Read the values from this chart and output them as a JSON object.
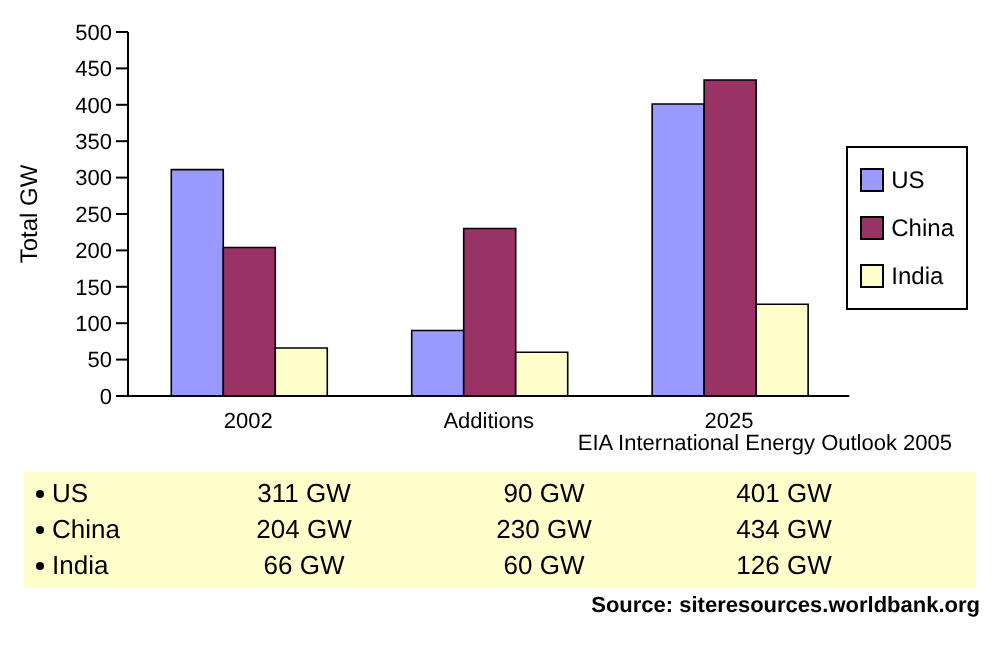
{
  "chart_data": {
    "type": "bar",
    "ylabel": "Total GW",
    "categories": [
      "2002",
      "Additions",
      "2025"
    ],
    "series": [
      {
        "name": "US",
        "color": "#9999ff",
        "values": [
          311,
          90,
          401
        ],
        "value_labels": [
          "311 GW",
          "90 GW",
          "401 GW"
        ]
      },
      {
        "name": "China",
        "color": "#993366",
        "values": [
          204,
          230,
          434
        ],
        "value_labels": [
          "204 GW",
          "230 GW",
          "434 GW"
        ]
      },
      {
        "name": "India",
        "color": "#ffffcc",
        "values": [
          66,
          60,
          126
        ],
        "value_labels": [
          "66 GW",
          "60 GW",
          "126 GW"
        ]
      }
    ],
    "ylim": [
      0,
      500
    ],
    "yticks": [
      0,
      50,
      100,
      150,
      200,
      250,
      300,
      350,
      400,
      450,
      500
    ],
    "grid": false,
    "legend": "right",
    "annotations": [
      "EIA International Energy Outlook 2005",
      "Source: siteresources.worldbank.org"
    ]
  }
}
